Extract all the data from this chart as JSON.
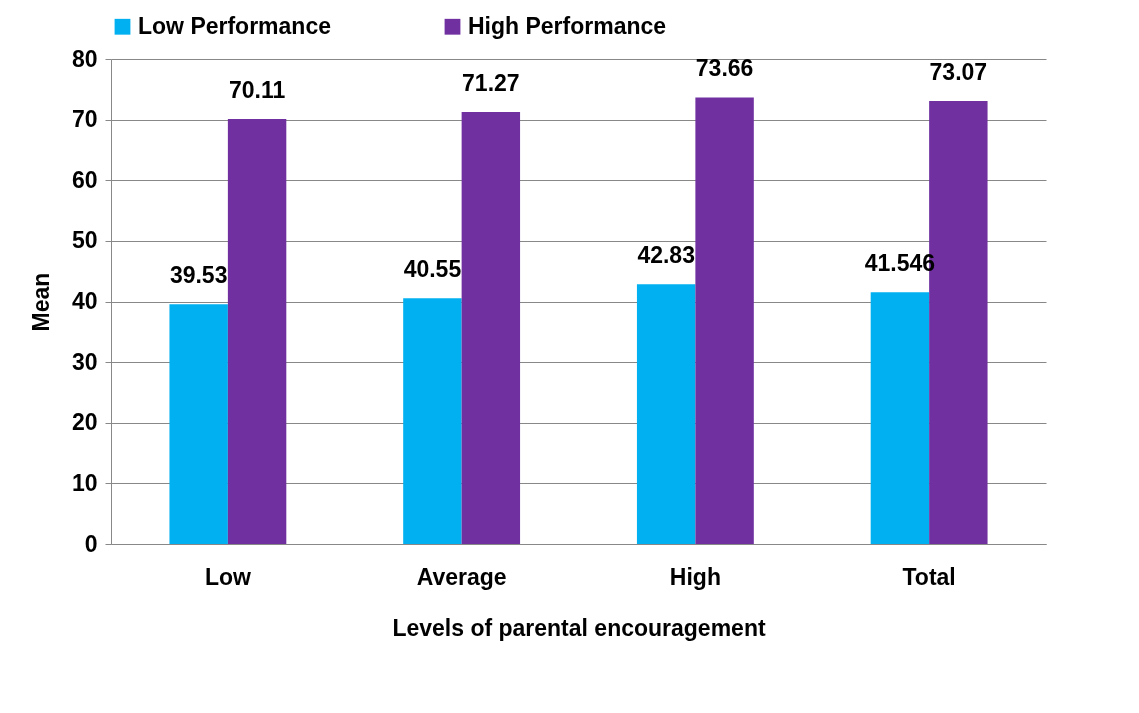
{
  "chart_data": {
    "type": "bar",
    "xlabel": "Levels of parental encouragement",
    "ylabel": "Mean",
    "categories": [
      "Low",
      "Average",
      "High",
      "Total"
    ],
    "series": [
      {
        "name": "Low Performance",
        "color": "#00b0f0",
        "values": [
          39.53,
          40.55,
          42.83,
          41.546
        ]
      },
      {
        "name": "High Performance",
        "color": "#7030a0",
        "values": [
          70.11,
          71.27,
          73.66,
          73.07
        ]
      }
    ],
    "ylim": [
      0,
      80
    ],
    "yticks": [
      0,
      10,
      20,
      30,
      40,
      50,
      60,
      70,
      80
    ],
    "grid": "y",
    "legend": "top",
    "data_labels": true
  }
}
